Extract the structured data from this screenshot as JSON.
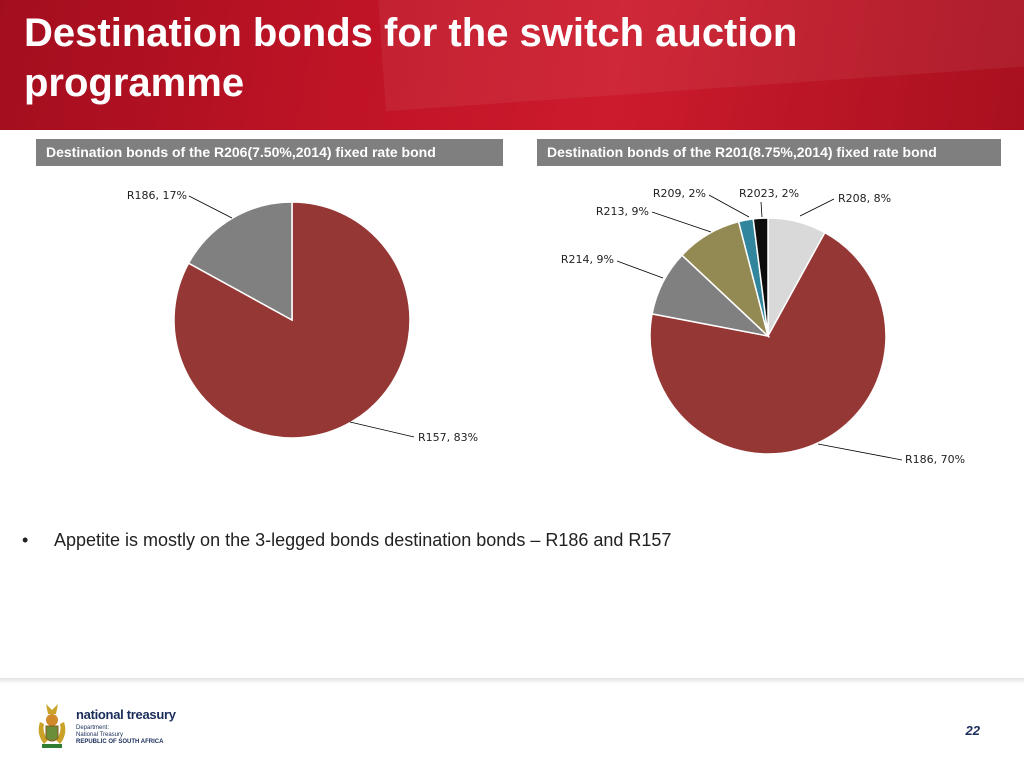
{
  "slide": {
    "title": "Destination bonds for the switch auction programme",
    "bullet": "Appetite is mostly on the 3-legged bonds destination bonds – R186 and R157",
    "page_number": "22",
    "colors": {
      "header_red": "#bf1426",
      "panel_grey": "#7f7f7f"
    }
  },
  "logo": {
    "name": "national treasury",
    "line1": "Department:",
    "line2": "National Treasury",
    "line3": "REPUBLIC OF SOUTH AFRICA"
  },
  "chart_data": [
    {
      "type": "pie",
      "title": "Destination bonds of the R206(7.50%,2014) fixed rate bond",
      "slices": [
        {
          "label": "R157, 83%",
          "value": 83,
          "color": "#953735"
        },
        {
          "label": "R186, 17%",
          "value": 17,
          "color": "#808080"
        }
      ]
    },
    {
      "type": "pie",
      "title": "Destination bonds of the R201(8.75%,2014) fixed rate bond",
      "slices": [
        {
          "label": "R208, 8%",
          "value": 8,
          "color": "#d9d9d9"
        },
        {
          "label": "R186, 70%",
          "value": 70,
          "color": "#953735"
        },
        {
          "label": "R214, 9%",
          "value": 9,
          "color": "#808080"
        },
        {
          "label": "R213, 9%",
          "value": 9,
          "color": "#938953"
        },
        {
          "label": "R209, 2%",
          "value": 2,
          "color": "#31859c"
        },
        {
          "label": "R2023, 2%",
          "value": 2,
          "color": "#0d0d0d"
        }
      ]
    }
  ]
}
